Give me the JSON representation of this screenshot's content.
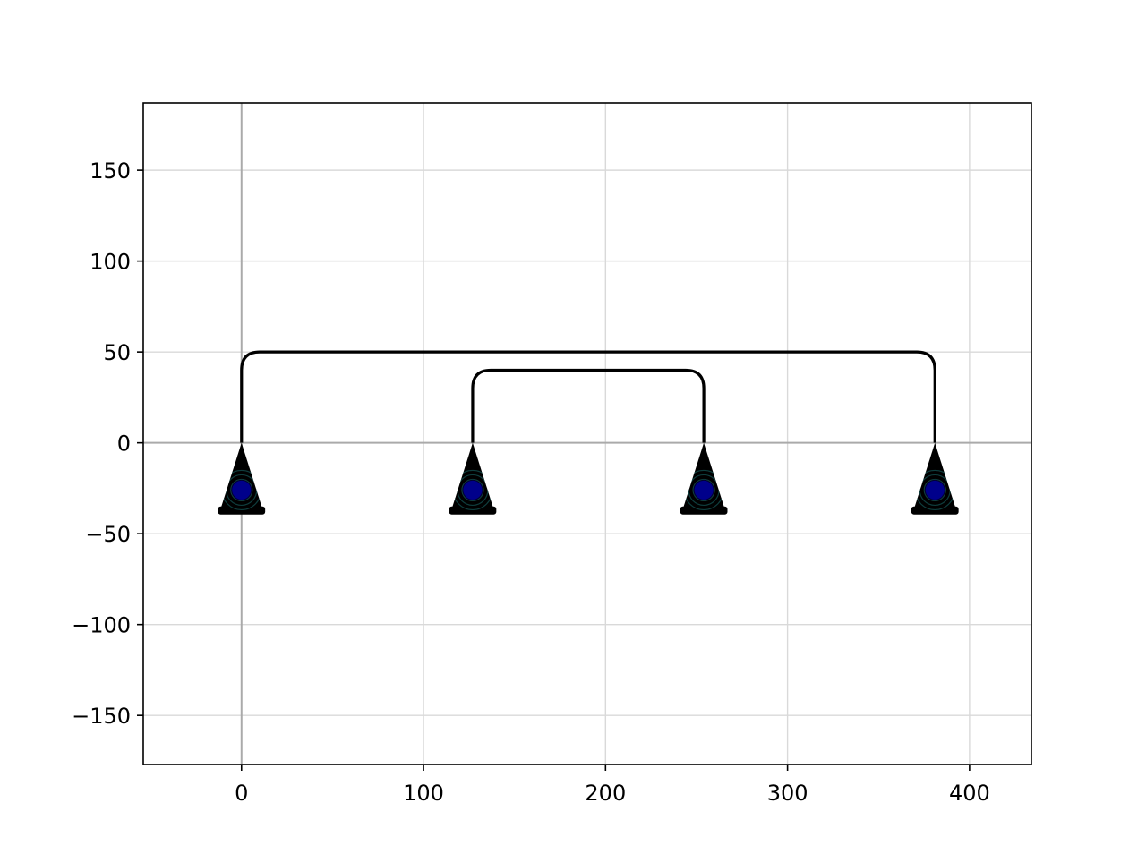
{
  "chart_data": {
    "type": "diagram",
    "xlim": [
      -54,
      434
    ],
    "ylim": [
      -177,
      187
    ],
    "x_ticks": [
      0,
      100,
      200,
      300,
      400
    ],
    "y_ticks": [
      -150,
      -100,
      -50,
      0,
      50,
      100,
      150
    ],
    "x_tick_labels": [
      "0",
      "100",
      "200",
      "300",
      "400"
    ],
    "y_tick_labels": [
      "−150",
      "−100",
      "−50",
      "0",
      "50",
      "100",
      "150"
    ],
    "grid": true,
    "axis_lines": {
      "x": 0,
      "y": 0
    },
    "supports": [
      {
        "x": 0,
        "y": 0
      },
      {
        "x": 127,
        "y": 0
      },
      {
        "x": 254,
        "y": 0
      },
      {
        "x": 381,
        "y": 0
      }
    ],
    "arcs": [
      {
        "from": 0,
        "to": 381,
        "height": 50
      },
      {
        "from": 127,
        "to": 254,
        "height": 40
      }
    ],
    "colors": {
      "structure": "#000000",
      "support_fill": "#000000",
      "support_ring": "#0f3d3d",
      "node_marker": "#00008b",
      "grid": "#d9d9d9",
      "axis_line": "#aaaaaa"
    }
  }
}
